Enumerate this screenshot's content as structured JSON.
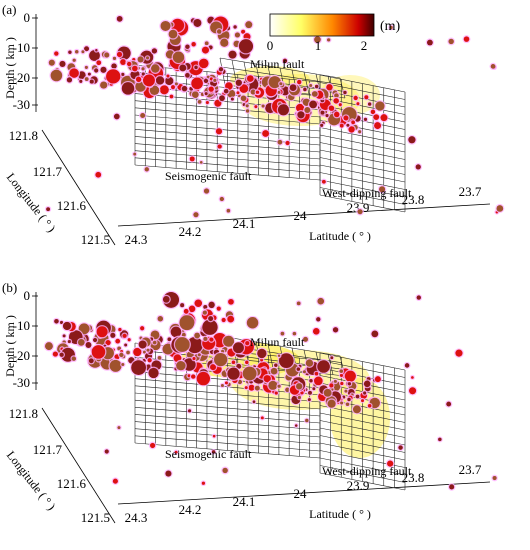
{
  "chart_data": {
    "type": "scatter",
    "projection": "3d",
    "panels": [
      {
        "label": "(a)"
      },
      {
        "label": "(b)"
      }
    ],
    "depth_axis": {
      "label": "Depth ( km )",
      "ticks": [
        "0",
        "-10",
        "-20",
        "-30"
      ]
    },
    "longitude_axis": {
      "label": "Longitude ( ° )",
      "ticks": [
        "121.8",
        "121.7",
        "121.6",
        "121.5"
      ]
    },
    "latitude_axis": {
      "label": "Latitude ( ° )",
      "ticks": [
        "24.3",
        "24.2",
        "24.1",
        "24",
        "23.9",
        "23.8",
        "23.7"
      ]
    },
    "colorbar": {
      "unit": "(m)",
      "ticks": [
        "0",
        "1",
        "2"
      ],
      "colors": [
        "#ffffff",
        "#ffff66",
        "#ff8800",
        "#cc0000",
        "#400000"
      ]
    },
    "annotations": {
      "milun": "Milun fault",
      "seismogenic": "Seismogenic fault",
      "westdip": "West-dipping fault"
    },
    "event_colors": [
      "#dd1111",
      "#8b1a1a",
      "#a0522d"
    ],
    "marker_halo_color": "#ffb0ff",
    "fault_slip_color": "#ffee55"
  }
}
